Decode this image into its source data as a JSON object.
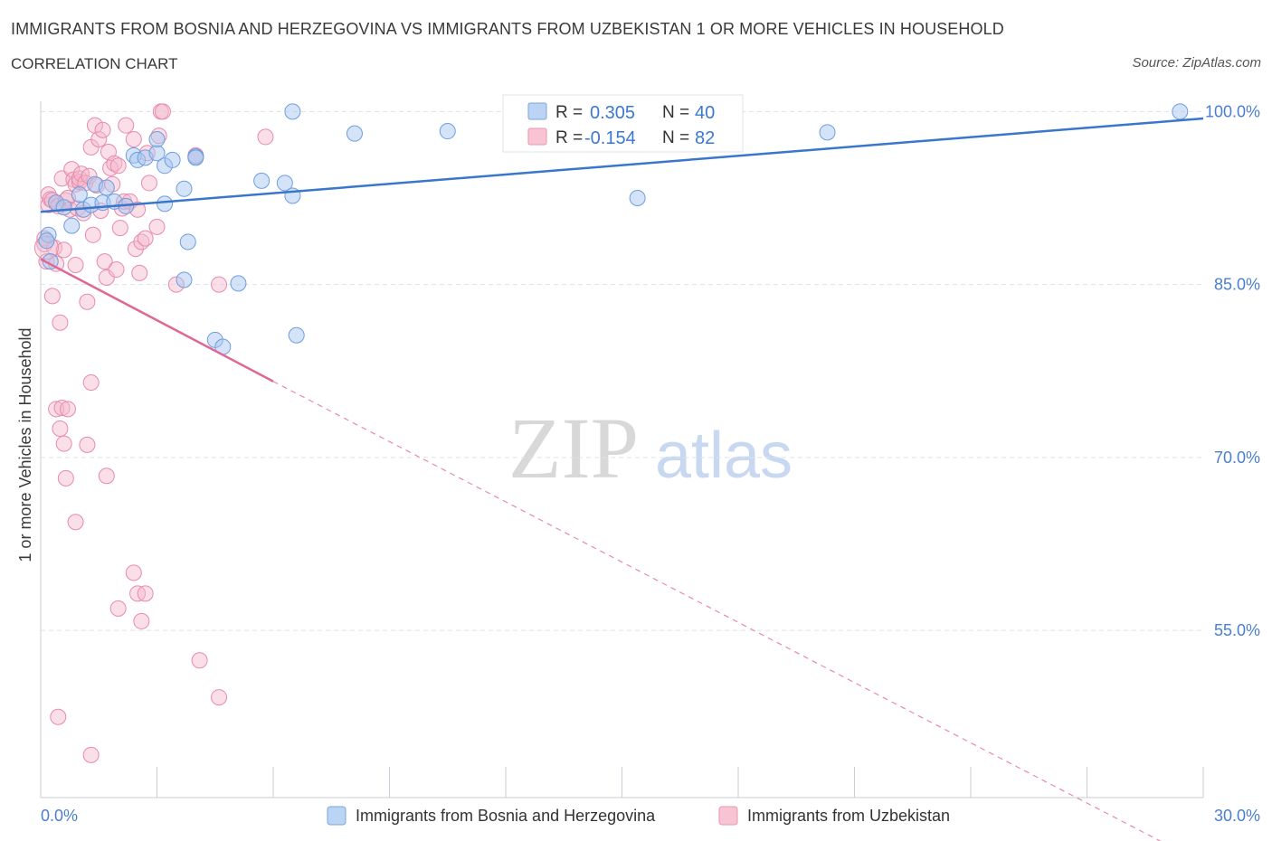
{
  "title": "IMMIGRANTS FROM BOSNIA AND HERZEGOVINA VS IMMIGRANTS FROM UZBEKISTAN 1 OR MORE VEHICLES IN HOUSEHOLD",
  "subtitle": "CORRELATION CHART",
  "source": "Source: ZipAtlas.com",
  "watermark": {
    "zip": "ZIP",
    "atlas": "atlas"
  },
  "colors": {
    "blue": "#4a86d8",
    "blue_fill": "#aac8f0",
    "pink": "#e8709a",
    "pink_fill": "#f4b8cc",
    "grid": "#dde3ea",
    "tick_text": "#4a7fd0"
  },
  "chart_data": {
    "type": "scatter",
    "title": "IMMIGRANTS FROM BOSNIA AND HERZEGOVINA VS IMMIGRANTS FROM UZBEKISTAN 1 OR MORE VEHICLES IN HOUSEHOLD",
    "xlabel": "",
    "ylabel": "1 or more Vehicles in Household",
    "xlim": [
      0,
      30
    ],
    "ylim": [
      40.5,
      100.5
    ],
    "x_tick_labels": [
      "0.0%",
      "30.0%"
    ],
    "y_ticks": [
      55,
      70,
      85,
      100
    ],
    "y_tick_labels": [
      "55.0%",
      "70.0%",
      "85.0%",
      "100.0%"
    ],
    "legend": [
      {
        "name": "Immigrants from Bosnia and Herzegovina",
        "r_label": "R =",
        "r": "0.305",
        "n_label": "N =",
        "n": "40"
      },
      {
        "name": "Immigrants from Uzbekistan",
        "r_label": "R =",
        "r": "-0.154",
        "n_label": "N =",
        "n": "82"
      }
    ],
    "series": [
      {
        "name": "Immigrants from Bosnia and Herzegovina",
        "color": "blue",
        "trend": {
          "x0": 0,
          "y0": 91.3,
          "x1": 30,
          "y1": 99.4
        },
        "points": [
          [
            0.2,
            89.3
          ],
          [
            0.4,
            92.1
          ],
          [
            0.6,
            91.7
          ],
          [
            0.8,
            90.1
          ],
          [
            1.0,
            92.8
          ],
          [
            1.1,
            91.5
          ],
          [
            1.3,
            91.9
          ],
          [
            1.4,
            93.7
          ],
          [
            1.6,
            92.1
          ],
          [
            1.7,
            93.4
          ],
          [
            1.9,
            92.2
          ],
          [
            2.2,
            91.8
          ],
          [
            2.4,
            96.2
          ],
          [
            2.5,
            95.8
          ],
          [
            2.7,
            96.0
          ],
          [
            3.0,
            96.4
          ],
          [
            3.2,
            95.3
          ],
          [
            3.4,
            95.8
          ],
          [
            3.0,
            97.6
          ],
          [
            3.2,
            92.0
          ],
          [
            3.7,
            93.3
          ],
          [
            3.8,
            88.7
          ],
          [
            4.0,
            96.1
          ],
          [
            4.0,
            96.0
          ],
          [
            3.7,
            85.4
          ],
          [
            4.5,
            80.2
          ],
          [
            4.7,
            79.6
          ],
          [
            5.1,
            85.1
          ],
          [
            5.7,
            94.0
          ],
          [
            6.3,
            93.8
          ],
          [
            6.5,
            100.0
          ],
          [
            6.5,
            92.7
          ],
          [
            6.6,
            80.6
          ],
          [
            8.1,
            98.1
          ],
          [
            10.5,
            98.3
          ],
          [
            15.4,
            92.5
          ],
          [
            20.3,
            98.2
          ],
          [
            29.4,
            100.0
          ],
          [
            0.15,
            88.8
          ],
          [
            0.25,
            87.0
          ]
        ]
      },
      {
        "name": "Immigrants from Uzbekistan",
        "color": "pink",
        "trend": {
          "x0": 0,
          "y0": 87.2,
          "x1": 6.0,
          "y1": 76.6,
          "dash_x1": 30,
          "dash_y1": 34.8
        },
        "points": [
          [
            0.1,
            89.0
          ],
          [
            0.1,
            88.5
          ],
          [
            0.15,
            87.0
          ],
          [
            0.2,
            92.8
          ],
          [
            0.2,
            91.9
          ],
          [
            0.25,
            92.4
          ],
          [
            0.3,
            92.3
          ],
          [
            0.3,
            84.0
          ],
          [
            0.35,
            88.2
          ],
          [
            0.4,
            86.8
          ],
          [
            0.45,
            91.8
          ],
          [
            0.5,
            81.7
          ],
          [
            0.55,
            94.2
          ],
          [
            0.6,
            88.0
          ],
          [
            0.65,
            92.3
          ],
          [
            0.7,
            92.5
          ],
          [
            0.75,
            91.5
          ],
          [
            0.8,
            95.0
          ],
          [
            0.85,
            94.1
          ],
          [
            0.9,
            93.7
          ],
          [
            0.9,
            86.7
          ],
          [
            0.95,
            91.6
          ],
          [
            1.0,
            93.9
          ],
          [
            1.0,
            94.2
          ],
          [
            1.05,
            94.6
          ],
          [
            1.1,
            91.2
          ],
          [
            1.15,
            93.8
          ],
          [
            1.2,
            83.5
          ],
          [
            1.25,
            94.4
          ],
          [
            1.3,
            96.9
          ],
          [
            1.35,
            89.3
          ],
          [
            1.4,
            98.8
          ],
          [
            1.45,
            93.6
          ],
          [
            1.5,
            97.6
          ],
          [
            1.55,
            91.4
          ],
          [
            1.6,
            98.4
          ],
          [
            1.65,
            87.0
          ],
          [
            1.7,
            85.6
          ],
          [
            1.75,
            96.5
          ],
          [
            1.8,
            95.1
          ],
          [
            1.85,
            93.7
          ],
          [
            1.9,
            95.5
          ],
          [
            1.95,
            86.3
          ],
          [
            2.0,
            95.3
          ],
          [
            2.05,
            89.9
          ],
          [
            2.1,
            91.6
          ],
          [
            2.15,
            92.2
          ],
          [
            2.2,
            98.8
          ],
          [
            2.3,
            92.2
          ],
          [
            2.4,
            97.6
          ],
          [
            2.45,
            88.1
          ],
          [
            2.5,
            91.5
          ],
          [
            2.55,
            86.0
          ],
          [
            2.6,
            88.7
          ],
          [
            2.7,
            89.0
          ],
          [
            2.75,
            96.4
          ],
          [
            2.8,
            93.8
          ],
          [
            3.0,
            90.0
          ],
          [
            3.05,
            97.9
          ],
          [
            3.1,
            100.0
          ],
          [
            3.15,
            100.0
          ],
          [
            3.5,
            85.0
          ],
          [
            4.0,
            96.2
          ],
          [
            4.6,
            85.0
          ],
          [
            5.8,
            97.8
          ],
          [
            0.4,
            74.2
          ],
          [
            0.5,
            72.5
          ],
          [
            0.55,
            74.3
          ],
          [
            0.6,
            71.2
          ],
          [
            0.65,
            68.2
          ],
          [
            0.7,
            74.2
          ],
          [
            0.9,
            64.4
          ],
          [
            1.2,
            71.1
          ],
          [
            1.3,
            76.5
          ],
          [
            1.7,
            68.4
          ],
          [
            2.0,
            56.9
          ],
          [
            2.4,
            60.0
          ],
          [
            2.5,
            58.2
          ],
          [
            2.7,
            58.2
          ],
          [
            2.6,
            55.8
          ],
          [
            4.1,
            52.4
          ],
          [
            4.6,
            49.2
          ]
        ]
      }
    ]
  },
  "extra_pink_points": [
    [
      0.45,
      47.5
    ],
    [
      1.3,
      44.2
    ]
  ]
}
